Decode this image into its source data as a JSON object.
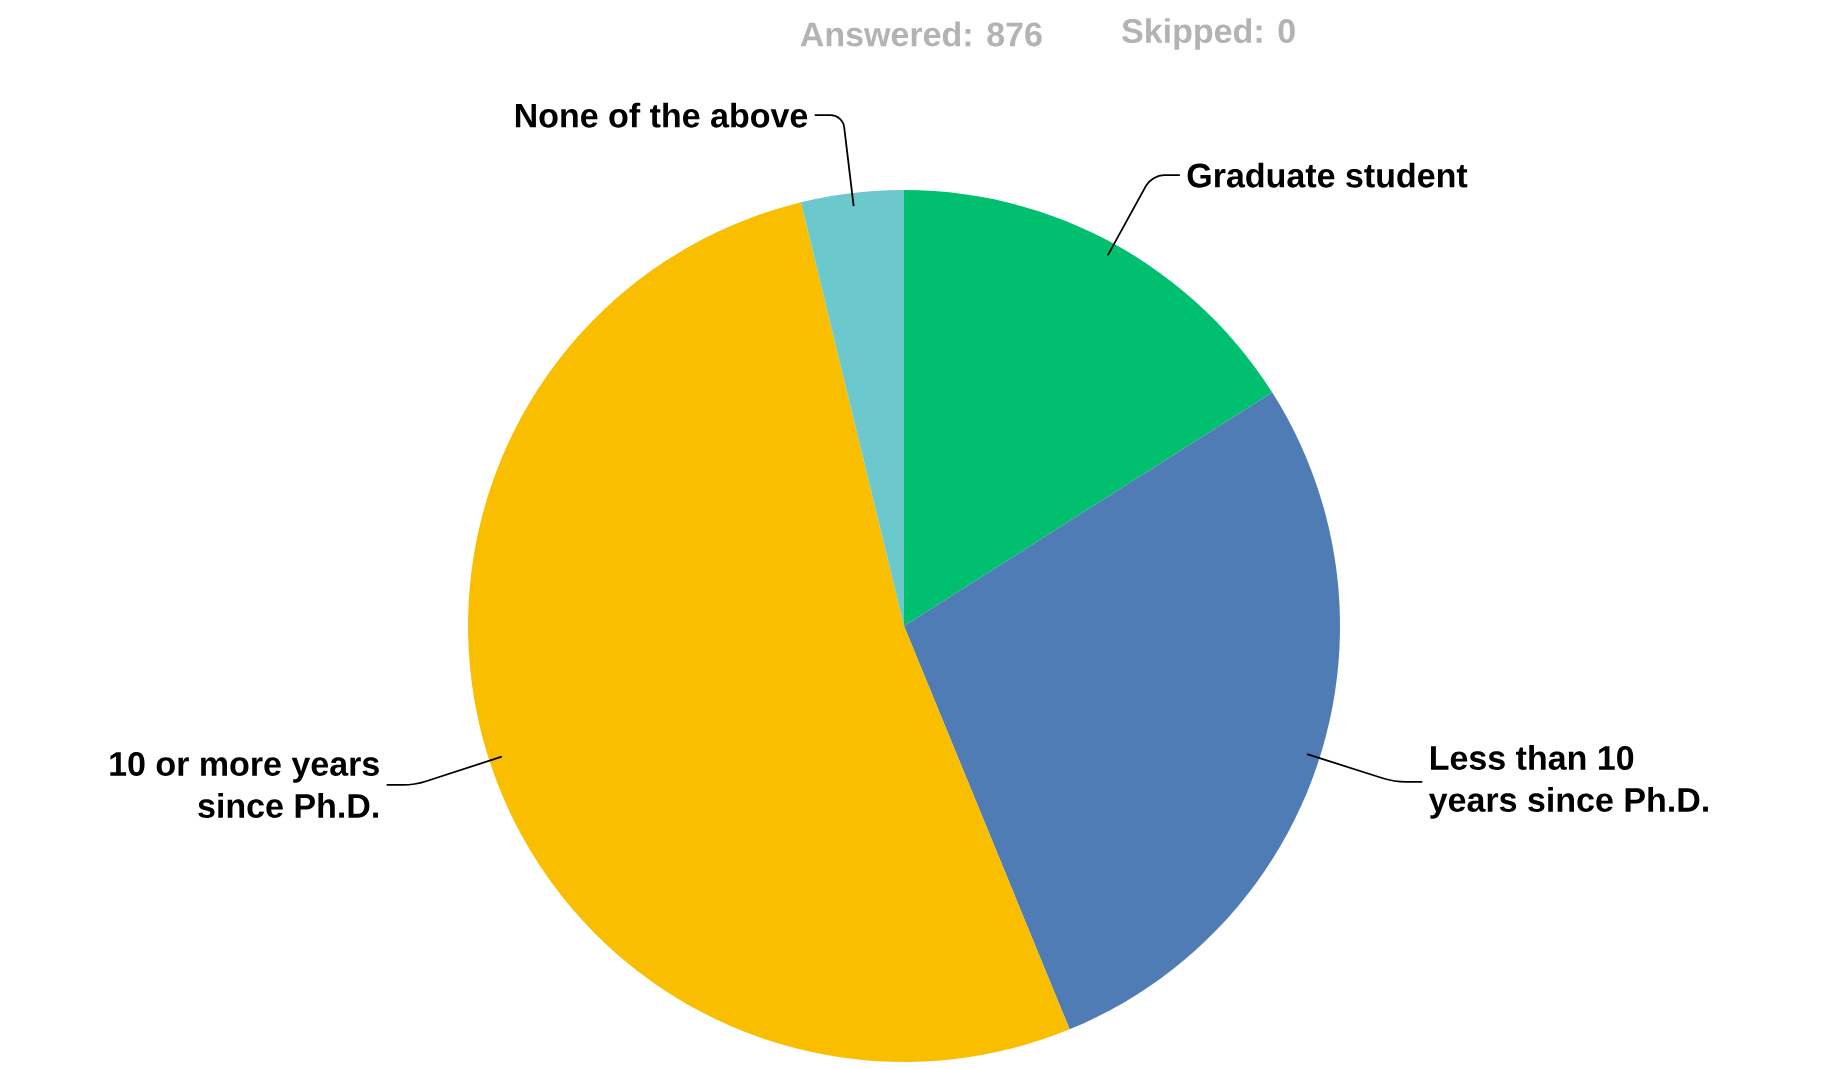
{
  "chart_data": {
    "type": "pie",
    "categories": [
      "Graduate student",
      "Less than 10 years since Ph.D.",
      "10 or more years since Ph.D.",
      "None of the above"
    ],
    "values": [
      16,
      27.8,
      52.4,
      3.8
    ],
    "colors": [
      "#00bf6f",
      "#507cb6",
      "#f9be00",
      "#6bc8cd"
    ],
    "annotations": [
      "Answered: 876",
      "Skipped: 0"
    ]
  }
}
